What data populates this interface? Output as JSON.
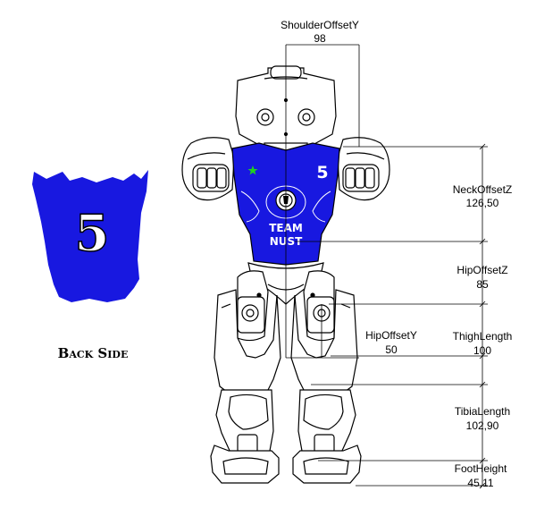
{
  "back": {
    "number": "5",
    "caption": "Back Side"
  },
  "jersey": {
    "number": "5",
    "team_line1": "TEAM",
    "team_line2": "NUST"
  },
  "dimensions": {
    "shoulder_offset_y": {
      "label": "ShoulderOffsetY",
      "value": "98"
    },
    "neck_offset_z": {
      "label": "NeckOffsetZ",
      "value": "126,50"
    },
    "hip_offset_z": {
      "label": "HipOffsetZ",
      "value": "85"
    },
    "hip_offset_y": {
      "label": "HipOffsetY",
      "value": "50"
    },
    "thigh_length": {
      "label": "ThighLength",
      "value": "100"
    },
    "tibia_length": {
      "label": "TibiaLength",
      "value": "102,90"
    },
    "foot_height": {
      "label": "FootHeight",
      "value": "45,11"
    }
  },
  "colors": {
    "jersey_blue": "#1818e0",
    "line": "#000000",
    "robot_fill": "#ffffff"
  }
}
